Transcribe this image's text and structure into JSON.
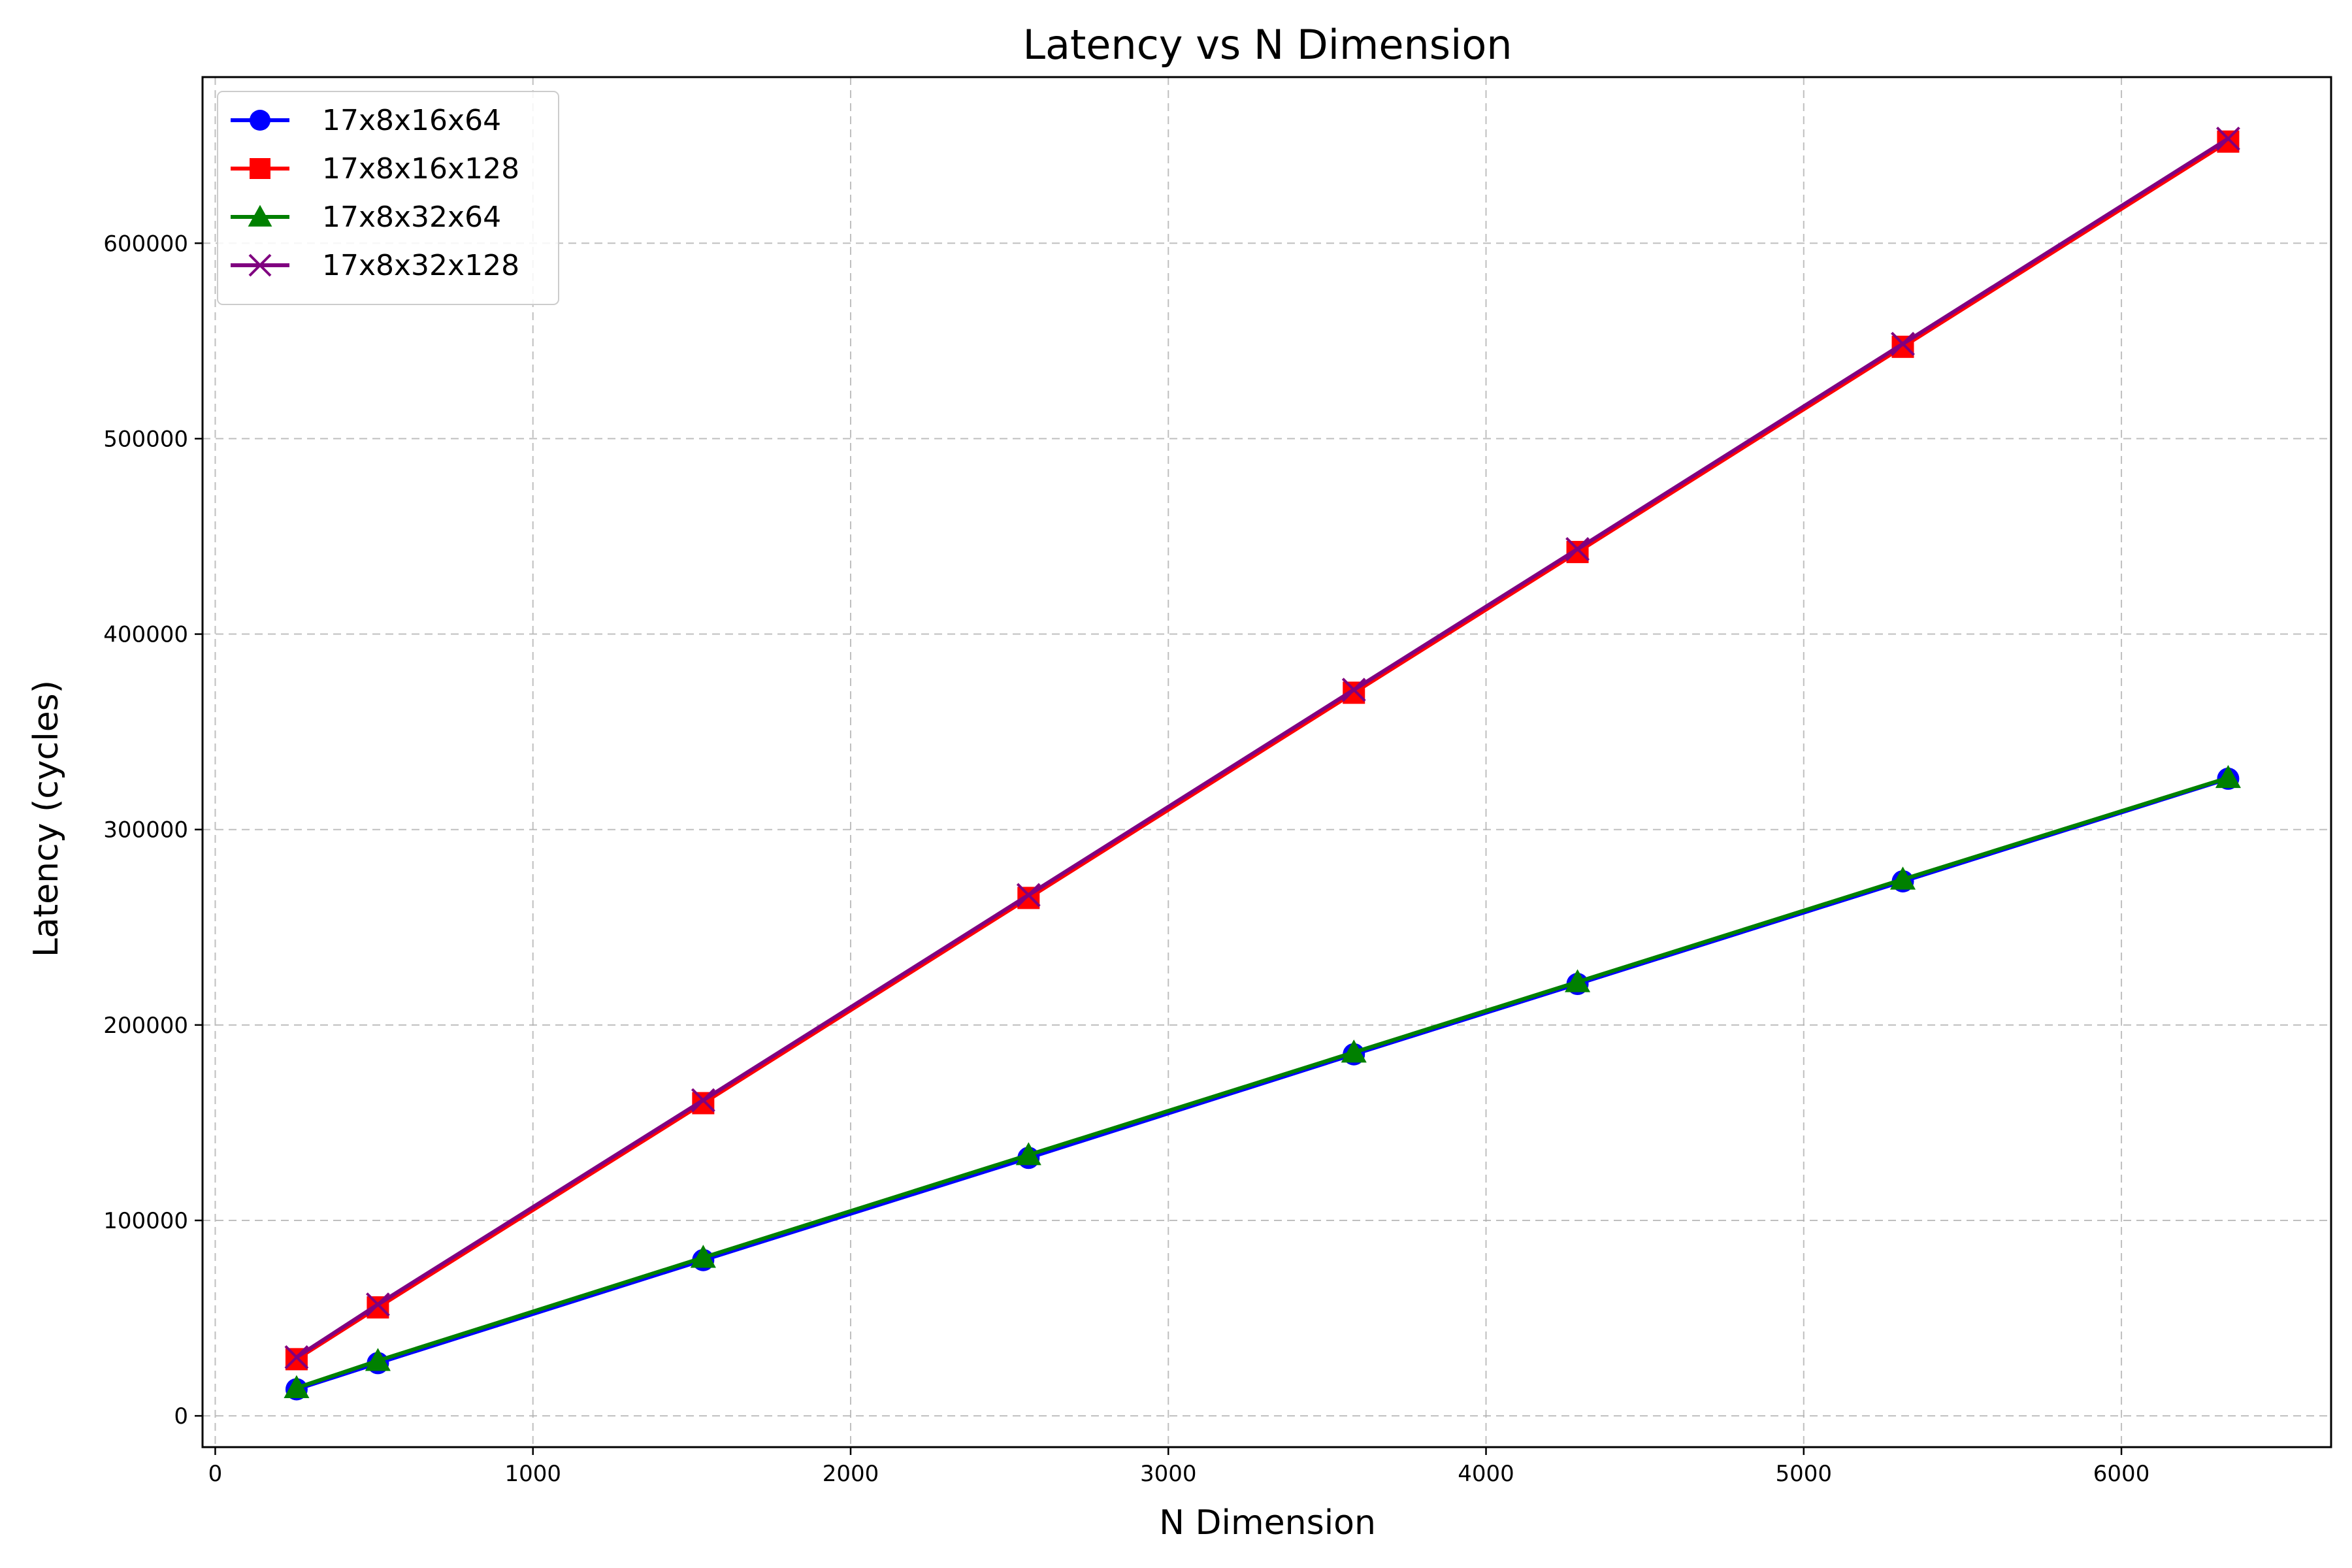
{
  "chart_data": {
    "type": "line",
    "title": "Latency vs N Dimension",
    "xlabel": "N Dimension",
    "ylabel": "Latency (cycles)",
    "xlim": [
      -40,
      6660
    ],
    "ylim": [
      -16000,
      685000
    ],
    "xticks": [
      0,
      1000,
      2000,
      3000,
      4000,
      5000,
      6000
    ],
    "yticks": [
      0,
      100000,
      200000,
      300000,
      400000,
      500000,
      600000
    ],
    "grid": true,
    "legend_position": "top-left",
    "x": [
      256,
      512,
      1536,
      2560,
      3584,
      4288,
      5312,
      6336
    ],
    "series": [
      {
        "name": "17x8x16x64",
        "color": "#0000ff",
        "marker": "circle",
        "values": [
          13600,
          27000,
          79700,
          132000,
          185000,
          221000,
          273500,
          326000
        ]
      },
      {
        "name": "17x8x16x128",
        "color": "#ff0000",
        "marker": "square",
        "values": [
          29000,
          55500,
          160000,
          265000,
          370000,
          442000,
          547000,
          652000
        ]
      },
      {
        "name": "17x8x32x64",
        "color": "#008000",
        "marker": "triangle",
        "values": [
          14300,
          28200,
          81000,
          133500,
          186000,
          222000,
          274500,
          326500
        ]
      },
      {
        "name": "17x8x32x128",
        "color": "#800080",
        "marker": "x",
        "values": [
          30000,
          57000,
          161500,
          266500,
          371500,
          443500,
          548500,
          653500
        ]
      }
    ]
  }
}
